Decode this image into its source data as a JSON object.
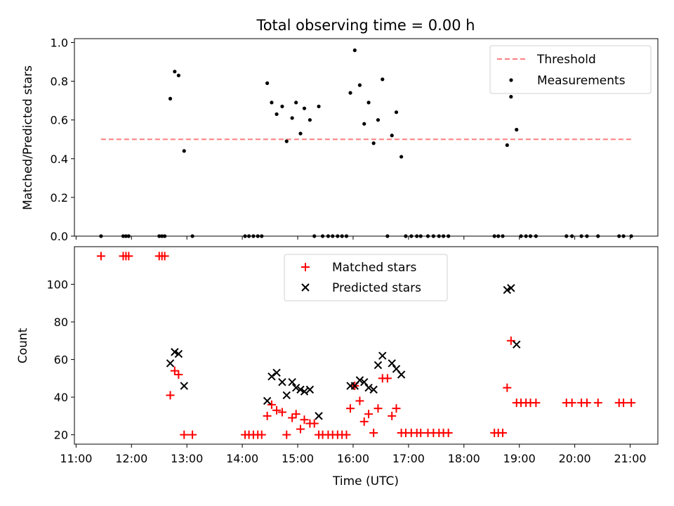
{
  "chart_data": {
    "title": "Total observing time = 0.00 h",
    "xlabel": "Time (UTC)",
    "x_ticks": [
      "11:00",
      "12:00",
      "13:00",
      "14:00",
      "15:00",
      "16:00",
      "17:00",
      "18:00",
      "19:00",
      "20:00",
      "21:00"
    ],
    "xlim_hours": [
      10.97,
      21.5
    ],
    "panels": [
      {
        "type": "scatter",
        "ylabel": "Matched/Predicted stars",
        "ylim": [
          0,
          1.02
        ],
        "y_ticks": [
          "0.0",
          "0.2",
          "0.4",
          "0.6",
          "0.8",
          "1.0"
        ],
        "legend": {
          "placement": "upper right",
          "entries": [
            "Threshold",
            "Measurements"
          ]
        },
        "threshold": {
          "name": "Threshold",
          "y": 0.5,
          "x_range": [
            11.45,
            21.05
          ],
          "color": "#ff7f7f",
          "style": "dashed"
        },
        "measurements": {
          "name": "Measurements",
          "color": "#000000",
          "points": [
            [
              11.45,
              0
            ],
            [
              11.85,
              0
            ],
            [
              11.9,
              0
            ],
            [
              11.95,
              0
            ],
            [
              12.5,
              0
            ],
            [
              12.55,
              0
            ],
            [
              12.6,
              0
            ],
            [
              12.7,
              0.71
            ],
            [
              12.78,
              0.85
            ],
            [
              12.85,
              0.83
            ],
            [
              12.95,
              0.44
            ],
            [
              13.1,
              0
            ],
            [
              14.05,
              0
            ],
            [
              14.12,
              0
            ],
            [
              14.2,
              0
            ],
            [
              14.28,
              0
            ],
            [
              14.35,
              0
            ],
            [
              14.45,
              0.79
            ],
            [
              14.53,
              0.69
            ],
            [
              14.62,
              0.63
            ],
            [
              14.72,
              0.67
            ],
            [
              14.8,
              0.49
            ],
            [
              14.9,
              0.61
            ],
            [
              14.97,
              0.69
            ],
            [
              15.05,
              0.53
            ],
            [
              15.12,
              0.66
            ],
            [
              15.22,
              0.6
            ],
            [
              15.38,
              0.67
            ],
            [
              15.3,
              0
            ],
            [
              15.45,
              0
            ],
            [
              15.55,
              0
            ],
            [
              15.63,
              0
            ],
            [
              15.72,
              0
            ],
            [
              15.8,
              0
            ],
            [
              15.88,
              0
            ],
            [
              15.95,
              0.74
            ],
            [
              16.03,
              0.96
            ],
            [
              16.12,
              0.78
            ],
            [
              16.2,
              0.58
            ],
            [
              16.28,
              0.69
            ],
            [
              16.37,
              0.48
            ],
            [
              16.45,
              0.6
            ],
            [
              16.53,
              0.81
            ],
            [
              16.62,
              0
            ],
            [
              16.7,
              0.52
            ],
            [
              16.78,
              0.64
            ],
            [
              16.87,
              0.41
            ],
            [
              16.95,
              0
            ],
            [
              17.05,
              0
            ],
            [
              17.15,
              0
            ],
            [
              17.22,
              0
            ],
            [
              17.35,
              0
            ],
            [
              17.45,
              0
            ],
            [
              17.55,
              0
            ],
            [
              17.63,
              0
            ],
            [
              17.72,
              0
            ],
            [
              18.55,
              0
            ],
            [
              18.62,
              0
            ],
            [
              18.7,
              0
            ],
            [
              18.78,
              0.47
            ],
            [
              18.85,
              0.72
            ],
            [
              18.95,
              0.55
            ],
            [
              19.03,
              0
            ],
            [
              19.12,
              0
            ],
            [
              19.2,
              0
            ],
            [
              19.3,
              0
            ],
            [
              19.85,
              0
            ],
            [
              19.95,
              0
            ],
            [
              20.12,
              0
            ],
            [
              20.22,
              0
            ],
            [
              20.42,
              0
            ],
            [
              20.8,
              0
            ],
            [
              20.88,
              0
            ],
            [
              21.02,
              0
            ]
          ]
        }
      },
      {
        "type": "scatter",
        "ylabel": "Count",
        "ylim": [
          15,
          120
        ],
        "y_ticks": [
          "20",
          "40",
          "60",
          "80",
          "100"
        ],
        "legend": {
          "placement": "upper center",
          "entries": [
            "Matched stars",
            "Predicted stars"
          ]
        },
        "matched": {
          "name": "Matched stars",
          "color": "#ff0000",
          "marker": "plus",
          "points": [
            [
              11.45,
              115
            ],
            [
              11.85,
              115
            ],
            [
              11.9,
              115
            ],
            [
              11.95,
              115
            ],
            [
              12.5,
              115
            ],
            [
              12.55,
              115
            ],
            [
              12.6,
              115
            ],
            [
              12.7,
              41
            ],
            [
              12.78,
              54
            ],
            [
              12.85,
              52
            ],
            [
              12.95,
              20
            ],
            [
              13.1,
              20
            ],
            [
              14.05,
              20
            ],
            [
              14.12,
              20
            ],
            [
              14.2,
              20
            ],
            [
              14.28,
              20
            ],
            [
              14.35,
              20
            ],
            [
              14.45,
              30
            ],
            [
              14.53,
              36
            ],
            [
              14.62,
              33
            ],
            [
              14.72,
              32
            ],
            [
              14.8,
              20
            ],
            [
              14.9,
              29
            ],
            [
              14.97,
              31
            ],
            [
              15.05,
              23
            ],
            [
              15.12,
              28
            ],
            [
              15.22,
              26
            ],
            [
              15.3,
              26
            ],
            [
              15.38,
              20
            ],
            [
              15.45,
              20
            ],
            [
              15.55,
              20
            ],
            [
              15.63,
              20
            ],
            [
              15.72,
              20
            ],
            [
              15.8,
              20
            ],
            [
              15.88,
              20
            ],
            [
              15.95,
              34
            ],
            [
              16.03,
              46
            ],
            [
              16.12,
              38
            ],
            [
              16.2,
              27
            ],
            [
              16.28,
              31
            ],
            [
              16.37,
              21
            ],
            [
              16.45,
              34
            ],
            [
              16.53,
              50
            ],
            [
              16.62,
              50
            ],
            [
              16.7,
              30
            ],
            [
              16.78,
              34
            ],
            [
              16.87,
              21
            ],
            [
              16.95,
              21
            ],
            [
              17.05,
              21
            ],
            [
              17.15,
              21
            ],
            [
              17.22,
              21
            ],
            [
              17.35,
              21
            ],
            [
              17.45,
              21
            ],
            [
              17.55,
              21
            ],
            [
              17.63,
              21
            ],
            [
              17.72,
              21
            ],
            [
              18.55,
              21
            ],
            [
              18.62,
              21
            ],
            [
              18.7,
              21
            ],
            [
              18.78,
              45
            ],
            [
              18.85,
              70
            ],
            [
              18.95,
              37
            ],
            [
              19.03,
              37
            ],
            [
              19.12,
              37
            ],
            [
              19.2,
              37
            ],
            [
              19.3,
              37
            ],
            [
              19.85,
              37
            ],
            [
              19.95,
              37
            ],
            [
              20.12,
              37
            ],
            [
              20.22,
              37
            ],
            [
              20.42,
              37
            ],
            [
              20.8,
              37
            ],
            [
              20.88,
              37
            ],
            [
              21.02,
              37
            ]
          ]
        },
        "predicted": {
          "name": "Predicted stars",
          "color": "#000000",
          "marker": "x",
          "points": [
            [
              12.7,
              58
            ],
            [
              12.78,
              64
            ],
            [
              12.85,
              63
            ],
            [
              12.95,
              46
            ],
            [
              14.45,
              38
            ],
            [
              14.53,
              51
            ],
            [
              14.62,
              53
            ],
            [
              14.72,
              48
            ],
            [
              14.8,
              41
            ],
            [
              14.9,
              48
            ],
            [
              14.97,
              45
            ],
            [
              15.05,
              44
            ],
            [
              15.12,
              43
            ],
            [
              15.22,
              44
            ],
            [
              15.38,
              30
            ],
            [
              15.95,
              46
            ],
            [
              16.03,
              46
            ],
            [
              16.12,
              49
            ],
            [
              16.2,
              48
            ],
            [
              16.28,
              45
            ],
            [
              16.37,
              44
            ],
            [
              16.45,
              57
            ],
            [
              16.53,
              62
            ],
            [
              16.7,
              58
            ],
            [
              16.78,
              55
            ],
            [
              16.87,
              52
            ],
            [
              18.78,
              97
            ],
            [
              18.85,
              98
            ],
            [
              18.95,
              68
            ]
          ]
        }
      }
    ]
  }
}
